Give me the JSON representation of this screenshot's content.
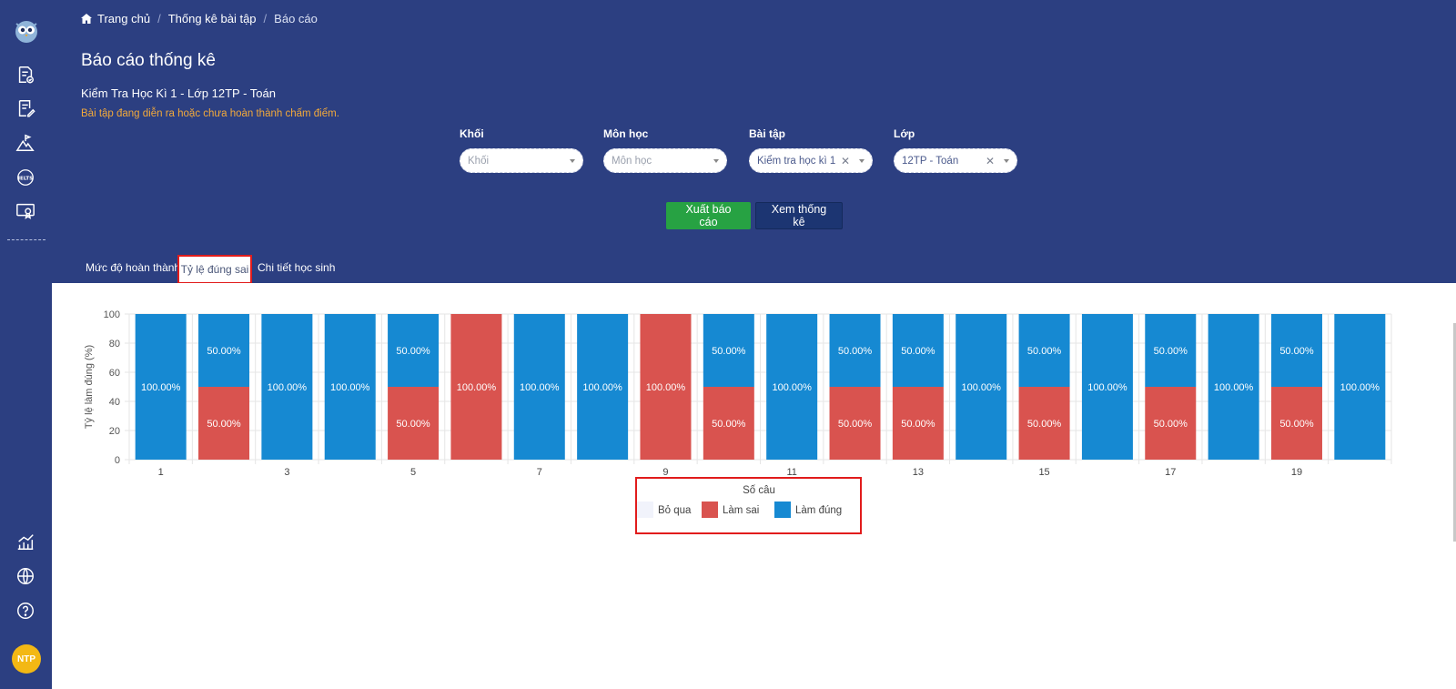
{
  "breadcrumb": {
    "home": "Trang chủ",
    "parent": "Thống kê bài tập",
    "current": "Báo cáo"
  },
  "page": {
    "title": "Báo cáo thống kê",
    "exam_title": "Kiểm Tra Học Kì 1 - Lớp 12TP - Toán",
    "warning": "Bài tập đang diễn ra hoặc chưa hoàn thành chấm điểm."
  },
  "filters": [
    {
      "label": "Khối",
      "value": "",
      "placeholder": "Khối",
      "clearable": false
    },
    {
      "label": "Môn học",
      "value": "",
      "placeholder": "Môn học",
      "clearable": false
    },
    {
      "label": "Bài tập",
      "value": "Kiểm tra học kì 1",
      "placeholder": "",
      "clearable": true
    },
    {
      "label": "Lớp",
      "value": "12TP - Toán",
      "placeholder": "",
      "clearable": true
    }
  ],
  "buttons": {
    "export": "Xuất báo cáo",
    "view": "Xem thống kê"
  },
  "tabs": [
    {
      "label": "Mức độ hoàn thành",
      "active": false
    },
    {
      "label": "Tỷ lệ đúng sai",
      "active": true
    },
    {
      "label": "Chi tiết học sinh",
      "active": false
    }
  ],
  "sidebar": {
    "icons": [
      "exam-check-icon",
      "exam-edit-icon",
      "mountain-flag-icon",
      "ielts-icon",
      "certificate-icon",
      "chart-icon",
      "globe-icon",
      "help-icon"
    ],
    "avatar": "NTP"
  },
  "colors": {
    "header_bg": "#2c3f81",
    "correct": "#1689d2",
    "wrong": "#d9534f",
    "skip": "#f1f3fb",
    "export_btn": "#27a243",
    "view_btn": "#1c3572",
    "highlight": "#e11c1c"
  },
  "chart_data": {
    "type": "bar",
    "stacked": true,
    "xlabel": "Số câu",
    "ylabel": "Tỷ lệ làm đúng (%)",
    "ylim": [
      0,
      100
    ],
    "yticks": [
      0,
      20,
      40,
      60,
      80,
      100
    ],
    "categories": [
      1,
      2,
      3,
      4,
      5,
      6,
      7,
      8,
      9,
      10,
      11,
      12,
      13,
      14,
      15,
      16,
      17,
      18,
      19,
      20
    ],
    "x_tick_labels": [
      "1",
      "3",
      "5",
      "7",
      "9",
      "11",
      "13",
      "15",
      "17",
      "19"
    ],
    "series": [
      {
        "name": "Bỏ qua",
        "values": [
          0,
          0,
          0,
          0,
          0,
          0,
          0,
          0,
          0,
          0,
          0,
          0,
          0,
          0,
          0,
          0,
          0,
          0,
          0,
          0
        ]
      },
      {
        "name": "Làm sai",
        "values": [
          0,
          50,
          0,
          0,
          50,
          100,
          0,
          0,
          100,
          50,
          0,
          50,
          50,
          0,
          50,
          0,
          50,
          0,
          50,
          0
        ]
      },
      {
        "name": "Làm đúng",
        "values": [
          100,
          50,
          100,
          100,
          50,
          0,
          100,
          100,
          0,
          50,
          100,
          50,
          50,
          100,
          50,
          100,
          50,
          100,
          50,
          100
        ]
      }
    ],
    "legend_position": "bottom",
    "grid": true
  }
}
